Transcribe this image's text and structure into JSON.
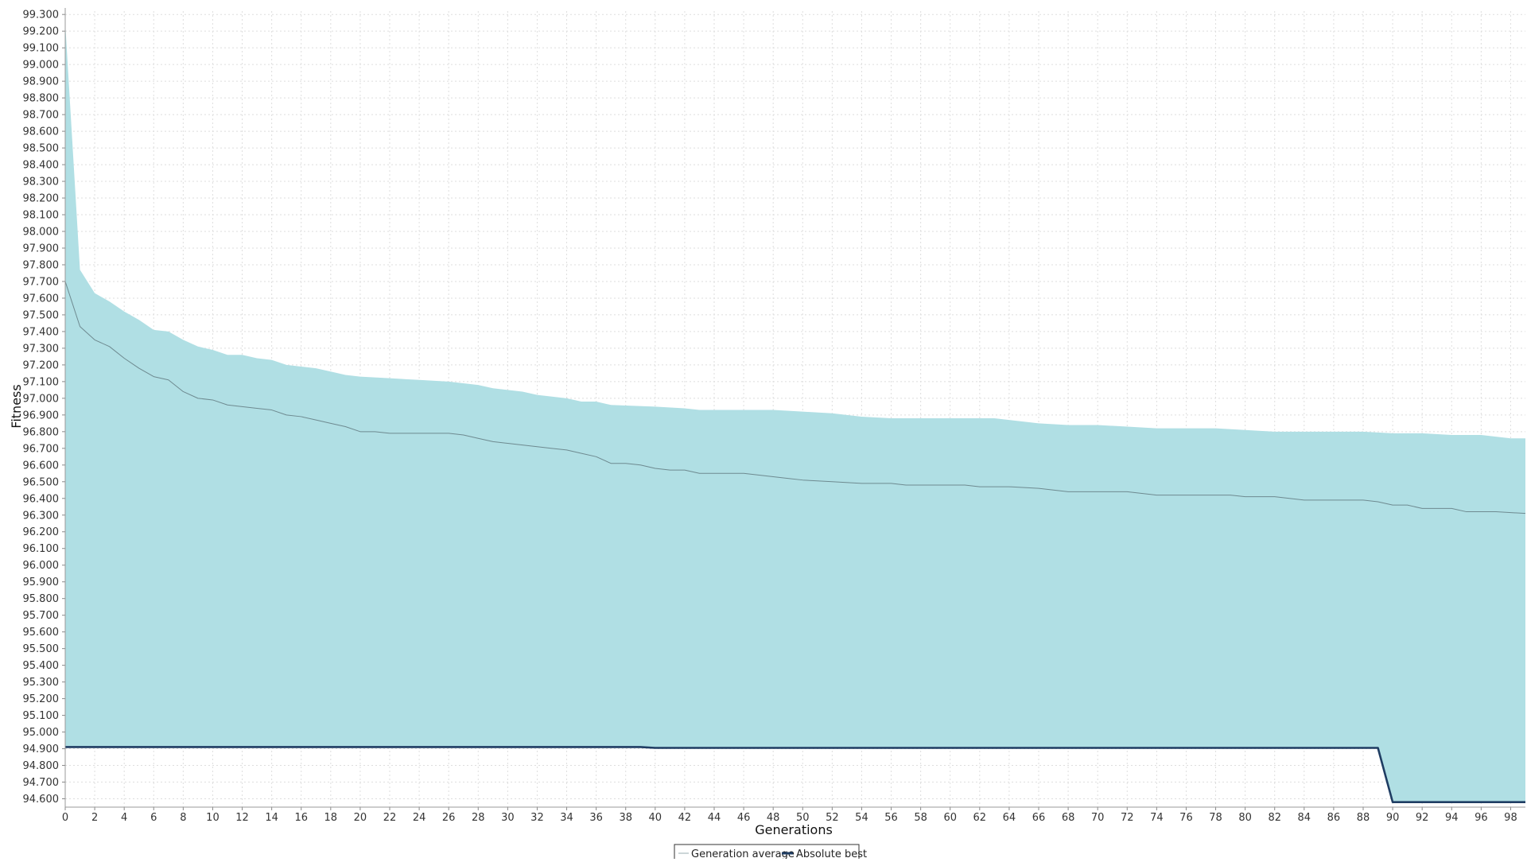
{
  "chart_data": {
    "type": "area",
    "title": "",
    "xlabel": "Generations",
    "ylabel": "Fitness",
    "xlim": [
      0,
      99
    ],
    "ylim": [
      94.55,
      99.32
    ],
    "x_ticks": [
      "0",
      "2",
      "4",
      "6",
      "8",
      "10",
      "12",
      "14",
      "16",
      "18",
      "20",
      "22",
      "24",
      "26",
      "28",
      "30",
      "32",
      "34",
      "36",
      "38",
      "40",
      "42",
      "44",
      "46",
      "48",
      "50",
      "52",
      "54",
      "56",
      "58",
      "60",
      "62",
      "64",
      "66",
      "68",
      "70",
      "72",
      "74",
      "76",
      "78",
      "80",
      "82",
      "84",
      "86",
      "88",
      "90",
      "92",
      "94",
      "96",
      "98"
    ],
    "y_ticks": [
      "94.600",
      "94.700",
      "94.800",
      "94.900",
      "95.000",
      "95.100",
      "95.200",
      "95.300",
      "95.400",
      "95.500",
      "95.600",
      "95.700",
      "95.800",
      "95.900",
      "96.000",
      "96.100",
      "96.200",
      "96.300",
      "96.400",
      "96.500",
      "96.600",
      "96.700",
      "96.800",
      "96.900",
      "97.000",
      "97.100",
      "97.200",
      "97.300",
      "97.400",
      "97.500",
      "97.600",
      "97.700",
      "97.800",
      "97.900",
      "98.000",
      "98.100",
      "98.200",
      "98.300",
      "98.400",
      "98.500",
      "98.600",
      "98.700",
      "98.800",
      "98.900",
      "99.000",
      "99.100",
      "99.200",
      "99.300"
    ],
    "grid": true,
    "legend_position": "bottom-center",
    "band": {
      "description_color": "#b0dfe4",
      "upper": [
        [
          0,
          99.25
        ],
        [
          1,
          97.77
        ],
        [
          2,
          97.63
        ],
        [
          3,
          97.58
        ],
        [
          4,
          97.52
        ],
        [
          5,
          97.47
        ],
        [
          6,
          97.41
        ],
        [
          7,
          97.4
        ],
        [
          8,
          97.35
        ],
        [
          9,
          97.31
        ],
        [
          10,
          97.29
        ],
        [
          11,
          97.26
        ],
        [
          12,
          97.26
        ],
        [
          13,
          97.24
        ],
        [
          14,
          97.23
        ],
        [
          15,
          97.2
        ],
        [
          16,
          97.19
        ],
        [
          17,
          97.18
        ],
        [
          18,
          97.16
        ],
        [
          19,
          97.14
        ],
        [
          20,
          97.13
        ],
        [
          22,
          97.12
        ],
        [
          24,
          97.11
        ],
        [
          26,
          97.1
        ],
        [
          28,
          97.08
        ],
        [
          29,
          97.06
        ],
        [
          30,
          97.05
        ],
        [
          31,
          97.04
        ],
        [
          32,
          97.02
        ],
        [
          34,
          97.0
        ],
        [
          35,
          96.98
        ],
        [
          36,
          96.98
        ],
        [
          37,
          96.96
        ],
        [
          40,
          96.95
        ],
        [
          42,
          96.94
        ],
        [
          43,
          96.93
        ],
        [
          48,
          96.93
        ],
        [
          50,
          96.92
        ],
        [
          52,
          96.91
        ],
        [
          54,
          96.89
        ],
        [
          56,
          96.88
        ],
        [
          63,
          96.88
        ],
        [
          64,
          96.87
        ],
        [
          66,
          96.85
        ],
        [
          68,
          96.84
        ],
        [
          70,
          96.84
        ],
        [
          72,
          96.83
        ],
        [
          74,
          96.82
        ],
        [
          78,
          96.82
        ],
        [
          80,
          96.81
        ],
        [
          82,
          96.8
        ],
        [
          88,
          96.8
        ],
        [
          90,
          96.79
        ],
        [
          92,
          96.79
        ],
        [
          94,
          96.78
        ],
        [
          96,
          96.78
        ],
        [
          98,
          96.76
        ],
        [
          99,
          96.76
        ]
      ]
    },
    "series": [
      {
        "name": "Generation average",
        "color": "#6e8a90",
        "points": [
          [
            0,
            97.7
          ],
          [
            1,
            97.43
          ],
          [
            2,
            97.35
          ],
          [
            3,
            97.31
          ],
          [
            4,
            97.24
          ],
          [
            5,
            97.18
          ],
          [
            6,
            97.13
          ],
          [
            7,
            97.11
          ],
          [
            8,
            97.04
          ],
          [
            9,
            97.0
          ],
          [
            10,
            96.99
          ],
          [
            11,
            96.96
          ],
          [
            12,
            96.95
          ],
          [
            13,
            96.94
          ],
          [
            14,
            96.93
          ],
          [
            15,
            96.9
          ],
          [
            16,
            96.89
          ],
          [
            17,
            96.87
          ],
          [
            18,
            96.85
          ],
          [
            19,
            96.83
          ],
          [
            20,
            96.8
          ],
          [
            21,
            96.8
          ],
          [
            22,
            96.79
          ],
          [
            26,
            96.79
          ],
          [
            27,
            96.78
          ],
          [
            28,
            96.76
          ],
          [
            29,
            96.74
          ],
          [
            30,
            96.73
          ],
          [
            31,
            96.72
          ],
          [
            32,
            96.71
          ],
          [
            33,
            96.7
          ],
          [
            34,
            96.69
          ],
          [
            35,
            96.67
          ],
          [
            36,
            96.65
          ],
          [
            37,
            96.61
          ],
          [
            38,
            96.61
          ],
          [
            39,
            96.6
          ],
          [
            40,
            96.58
          ],
          [
            41,
            96.57
          ],
          [
            42,
            96.57
          ],
          [
            43,
            96.55
          ],
          [
            46,
            96.55
          ],
          [
            47,
            96.54
          ],
          [
            48,
            96.53
          ],
          [
            49,
            96.52
          ],
          [
            50,
            96.51
          ],
          [
            52,
            96.5
          ],
          [
            54,
            96.49
          ],
          [
            56,
            96.49
          ],
          [
            57,
            96.48
          ],
          [
            61,
            96.48
          ],
          [
            62,
            96.47
          ],
          [
            64,
            96.47
          ],
          [
            66,
            96.46
          ],
          [
            67,
            96.45
          ],
          [
            68,
            96.44
          ],
          [
            70,
            96.44
          ],
          [
            72,
            96.44
          ],
          [
            73,
            96.43
          ],
          [
            74,
            96.42
          ],
          [
            79,
            96.42
          ],
          [
            80,
            96.41
          ],
          [
            82,
            96.41
          ],
          [
            83,
            96.4
          ],
          [
            84,
            96.39
          ],
          [
            88,
            96.39
          ],
          [
            89,
            96.38
          ],
          [
            90,
            96.36
          ],
          [
            91,
            96.36
          ],
          [
            92,
            96.34
          ],
          [
            94,
            96.34
          ],
          [
            95,
            96.32
          ],
          [
            97,
            96.32
          ],
          [
            99,
            96.31
          ]
        ]
      },
      {
        "name": "Absolute best",
        "color": "#1f3d63",
        "points": [
          [
            0,
            94.91
          ],
          [
            39,
            94.91
          ],
          [
            40,
            94.905
          ],
          [
            89,
            94.905
          ],
          [
            90,
            94.58
          ],
          [
            99,
            94.58
          ]
        ]
      }
    ]
  }
}
